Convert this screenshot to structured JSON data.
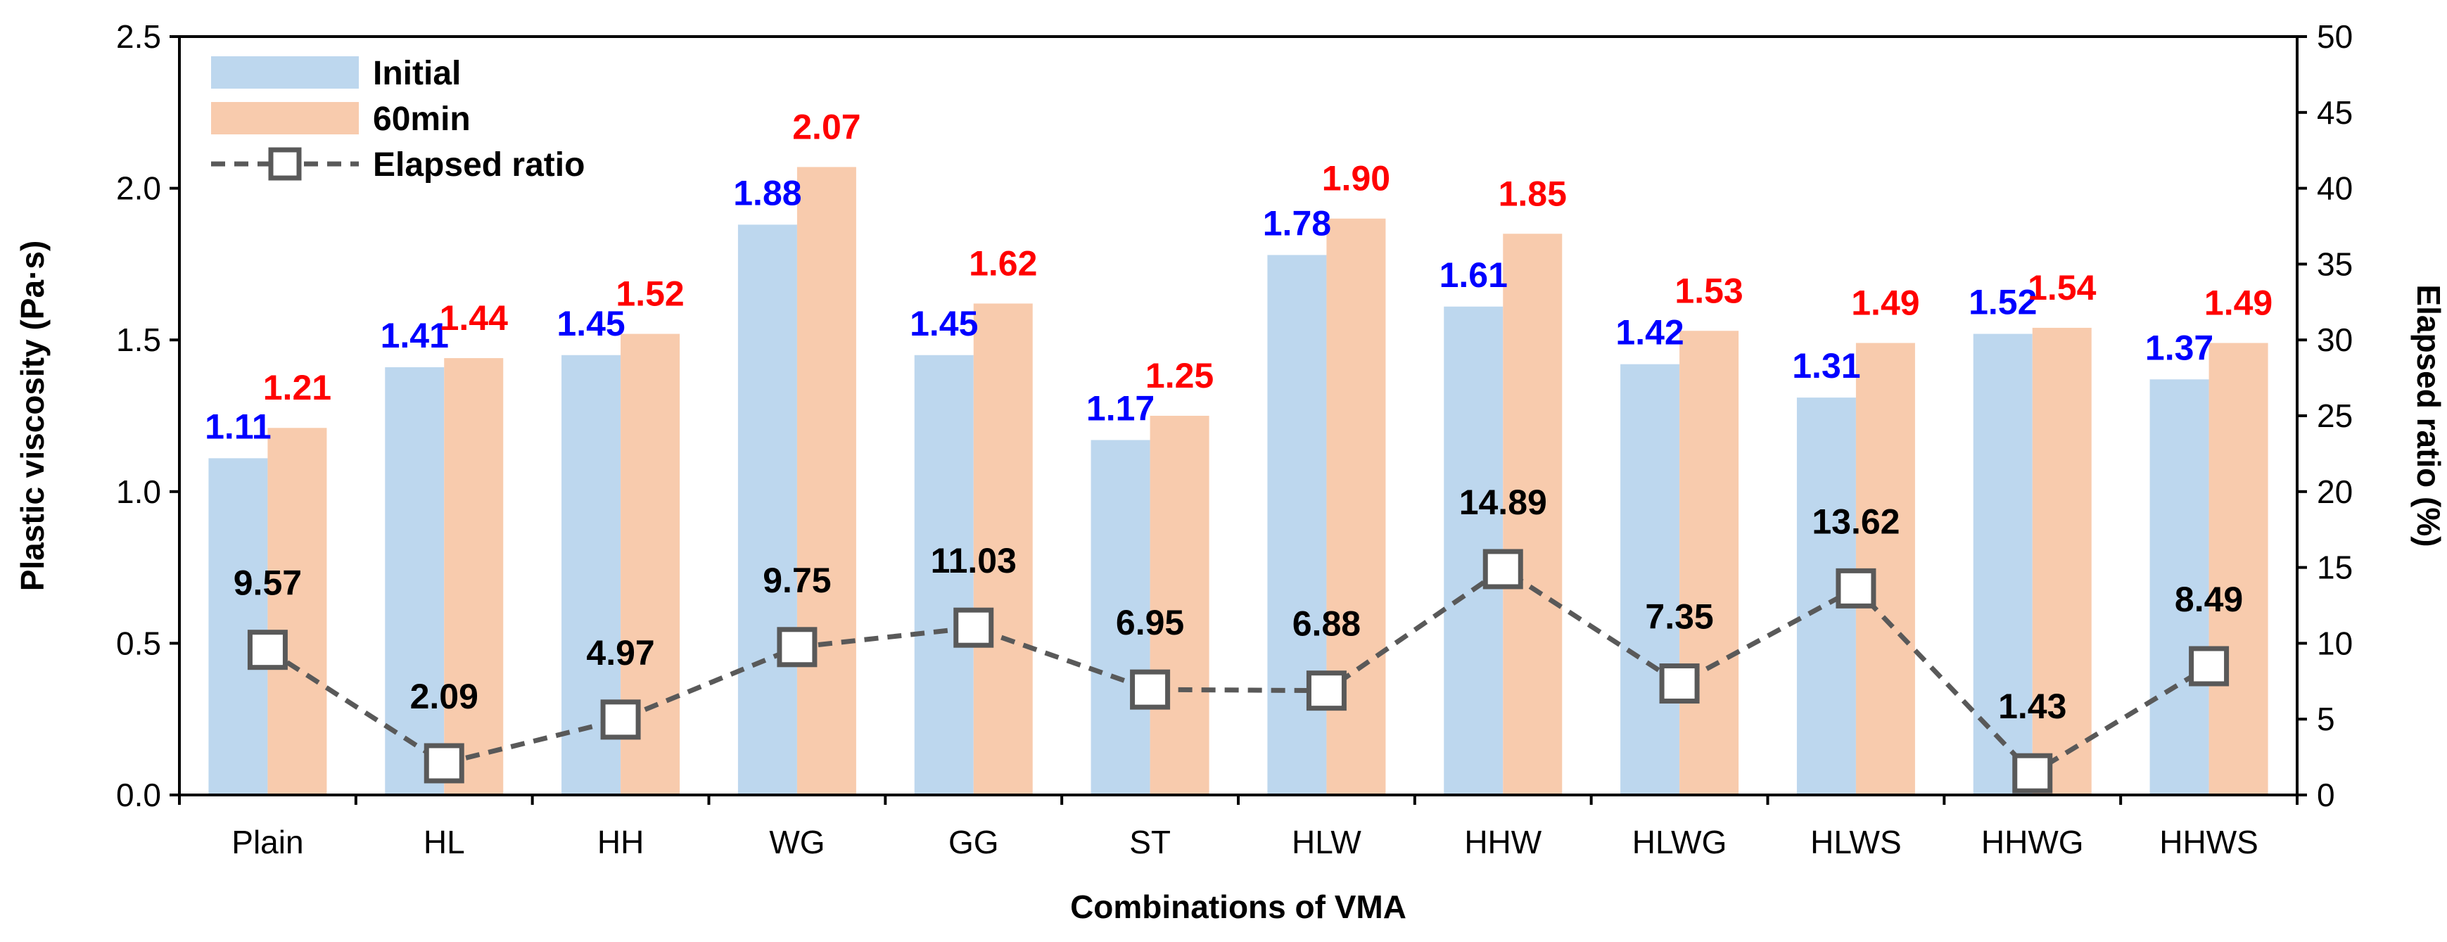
{
  "chart_data": {
    "type": "bar",
    "title": "",
    "xlabel": "Combinations of VMA",
    "ylabel": "Plastic viscosity (Pa·s)",
    "y2label": "Elapsed ratio (%)",
    "ylim": [
      0,
      2.5
    ],
    "y_ticks": [
      "0.0",
      "0.5",
      "1.0",
      "1.5",
      "2.0",
      "2.5"
    ],
    "y2lim": [
      0,
      50
    ],
    "y2_ticks": [
      "0",
      "5",
      "10",
      "15",
      "20",
      "25",
      "30",
      "35",
      "40",
      "45",
      "50"
    ],
    "categories": [
      "Plain",
      "HL",
      "HH",
      "WG",
      "GG",
      "ST",
      "HLW",
      "HHW",
      "HLWG",
      "HLWS",
      "HHWG",
      "HHWS"
    ],
    "series": [
      {
        "name": "Initial",
        "type": "bar",
        "axis": "left",
        "color": "#bdd7ee",
        "label_color": "#0000ff",
        "values": [
          1.11,
          1.41,
          1.45,
          1.88,
          1.45,
          1.17,
          1.78,
          1.61,
          1.42,
          1.31,
          1.52,
          1.37
        ],
        "labels": [
          "1.11",
          "1.41",
          "1.45",
          "1.88",
          "1.45",
          "1.17",
          "1.78",
          "1.61",
          "1.42",
          "1.31",
          "1.52",
          "1.37"
        ]
      },
      {
        "name": "60min",
        "type": "bar",
        "axis": "left",
        "color": "#f8cbad",
        "label_color": "#ff0000",
        "values": [
          1.21,
          1.44,
          1.52,
          2.07,
          1.62,
          1.25,
          1.9,
          1.85,
          1.53,
          1.49,
          1.54,
          1.49
        ],
        "labels": [
          "1.21",
          "1.44",
          "1.52",
          "2.07",
          "1.62",
          "1.25",
          "1.90",
          "1.85",
          "1.53",
          "1.49",
          "1.54",
          "1.49"
        ]
      },
      {
        "name": "Elapsed ratio",
        "type": "line",
        "axis": "right",
        "color": "#595959",
        "label_color": "#000000",
        "marker": "square",
        "line_style": "dashed",
        "values": [
          9.57,
          2.09,
          4.97,
          9.75,
          11.03,
          6.95,
          6.88,
          14.89,
          7.35,
          13.62,
          1.43,
          8.49
        ],
        "labels": [
          "9.57",
          "2.09",
          "4.97",
          "9.75",
          "11.03",
          "6.95",
          "6.88",
          "14.89",
          "7.35",
          "13.62",
          "1.43",
          "8.49"
        ]
      }
    ],
    "legend_position": "top-left",
    "grid": false
  }
}
